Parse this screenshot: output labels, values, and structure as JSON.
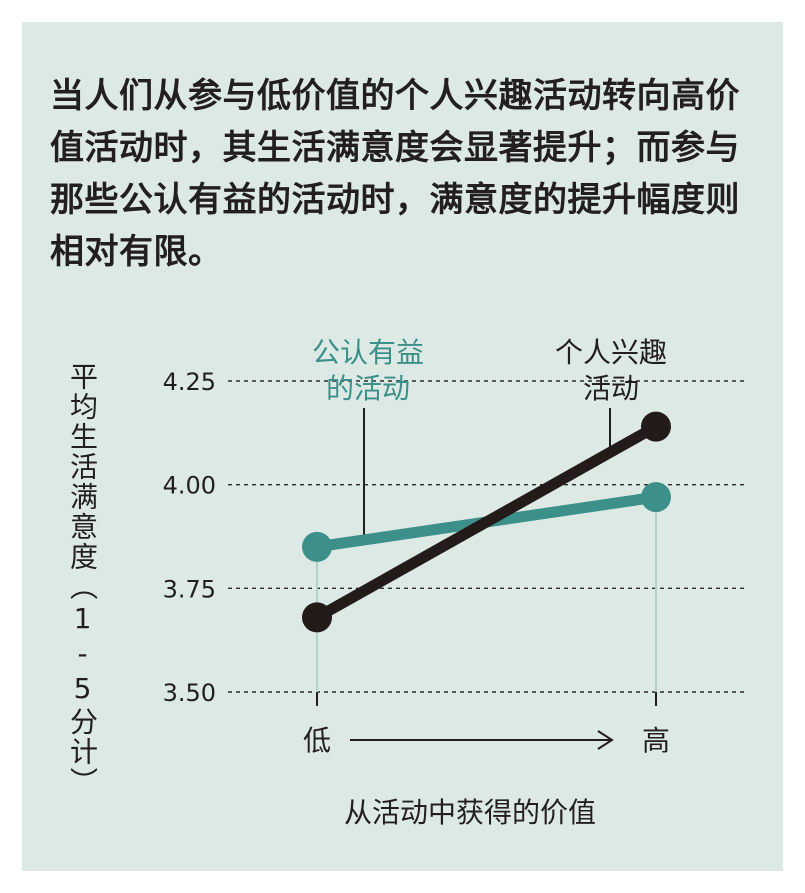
{
  "title": "当人们从参与低价值的个人兴趣活动转向高价值活动时，其生活满意度会显著提升；而参与那些公认有益的活动时，满意度的提升幅度则相对有限。",
  "colors": {
    "background": "#dde9e5",
    "teal": "#3d9089",
    "dark": "#231a1a",
    "grid": "#2a2a2a",
    "guide": "#b4d0ca"
  },
  "chart_data": {
    "type": "line",
    "categories": [
      "低",
      "高"
    ],
    "series": [
      {
        "name": "公认有益的活动",
        "values": [
          3.85,
          3.97
        ],
        "color": "#3d9089"
      },
      {
        "name": "个人兴趣活动",
        "values": [
          3.68,
          4.14
        ],
        "color": "#231a1a"
      }
    ],
    "xlabel": "从活动中获得的价值",
    "ylabel": "平均生活满意度（1-5分计）",
    "ylim": [
      3.5,
      4.25
    ],
    "yticks": [
      3.5,
      3.75,
      4.0,
      4.25
    ],
    "ytick_labels": [
      "3.50",
      "3.75",
      "4.00",
      "4.25"
    ],
    "grid": true,
    "legend": "direct-labels"
  },
  "labels": {
    "teal_line1": "公认有益",
    "teal_line2": "的活动",
    "dark_line1": "个人兴趣",
    "dark_line2": "活动"
  }
}
